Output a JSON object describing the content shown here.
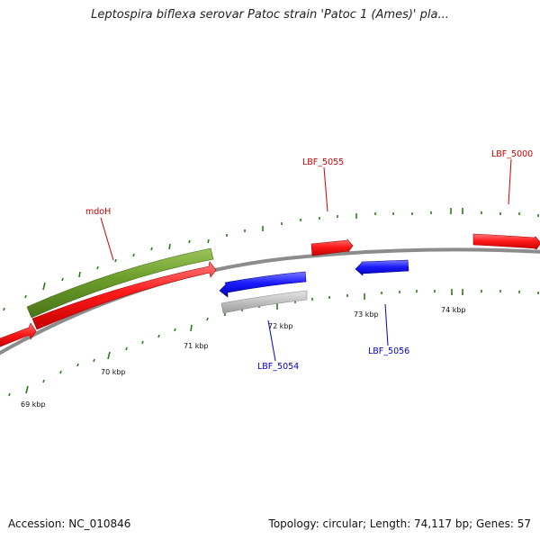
{
  "title": "Leptospira biflexa serovar Patoc strain 'Patoc 1 (Ames)' pla...",
  "footer": {
    "accession": "Accession: NC_010846",
    "summary": "Topology: circular; Length: 74,117 bp; Genes: 57"
  },
  "colors": {
    "forward_gene": "#ff1a1a",
    "reverse_gene": "#1a1aff",
    "feature_green": "#6a9c2a",
    "pseudo_gray": "#bdbdbd",
    "backbone": "#8c8c8c",
    "tick": "#2d7a1e",
    "forward_label": "#cc0000",
    "reverse_label": "#0000cc"
  },
  "genes": [
    {
      "name": "mdoH",
      "strand": "forward",
      "color": "green"
    },
    {
      "name": "LBF_5055",
      "strand": "forward"
    },
    {
      "name": "LBF_5000",
      "strand": "forward"
    },
    {
      "name": "LBF_5054",
      "strand": "reverse"
    },
    {
      "name": "LBF_5056",
      "strand": "reverse"
    }
  ],
  "scale_labels": [
    "69 kbp",
    "70 kbp",
    "71 kbp",
    "72 kbp",
    "73 kbp",
    "74 kbp"
  ]
}
